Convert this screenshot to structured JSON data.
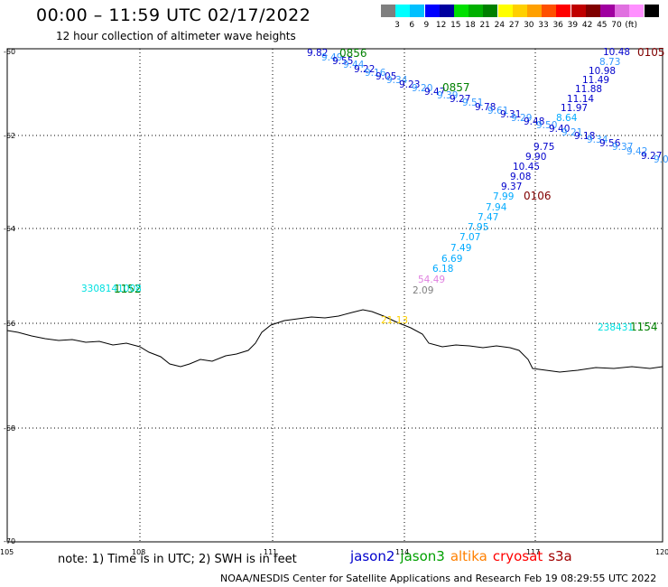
{
  "header": {
    "title": "00:00 – 11:59 UTC 02/17/2022",
    "subtitle": "12 hour collection of altimeter wave heights"
  },
  "color_scale": {
    "colors": [
      "#7f7f7f",
      "#00ffff",
      "#00c0ff",
      "#0000ff",
      "#0000a0",
      "#00e000",
      "#00b000",
      "#008000",
      "#ffff00",
      "#ffd000",
      "#ffa000",
      "#ff5000",
      "#ff0000",
      "#c00000",
      "#800000",
      "#a000a0",
      "#e070e0",
      "#ff90ff",
      "#000000"
    ],
    "labels": [
      "3",
      "6",
      "9",
      "12",
      "15",
      "18",
      "21",
      "24",
      "27",
      "30",
      "33",
      "36",
      "39",
      "42",
      "45",
      "70",
      "(ft)"
    ]
  },
  "axes": {
    "lat_labels": [
      "-60",
      "-62",
      "-64",
      "-66",
      "-68",
      "-70"
    ],
    "lon_labels": [
      "105",
      "108",
      "111",
      "114",
      "117",
      "120"
    ]
  },
  "tracks": {
    "right_ascending": [
      "10.48",
      "8.73",
      "10.98",
      "11.49",
      "11.88",
      "11.14",
      "11.97",
      "8.64",
      "9.75",
      "9.90",
      "10.45",
      "9.08",
      "9.37",
      "7.99",
      "7.94",
      "7.47",
      "7.95",
      "7.07",
      "7.49",
      "6.69",
      "6.18",
      "54.49",
      "2.09"
    ],
    "right_label_colors": [
      "#0000cc",
      "#3399ff",
      "#0000cc",
      "#0000cc",
      "#0000cc",
      "#0000cc",
      "#0000cc",
      "#00aaff",
      "#0000cc",
      "#0000cc",
      "#0000cc",
      "#0000cc",
      "#0000cc",
      "#00aaff",
      "#00aaff",
      "#00aaff",
      "#00aaff",
      "#00aaff",
      "#00aaff",
      "#00aaff",
      "#00aaff",
      "#e080e0",
      "#7f7f7f"
    ],
    "pass_labels": [
      "0105",
      "0106",
      "0856",
      "0857",
      "1152",
      "1154"
    ],
    "cluster_left_text": "3308141008",
    "cluster_bottomright_text": "238431",
    "coast_label": "21.13"
  },
  "note": "note: 1) Time is in UTC; 2) SWH is in feet",
  "legend": [
    {
      "name": "jason2",
      "color": "#0000cc"
    },
    {
      "name": "jason3",
      "color": "#00a000"
    },
    {
      "name": "altika",
      "color": "#ff8000"
    },
    {
      "name": "cryosat",
      "color": "#ff0000"
    },
    {
      "name": "s3a",
      "color": "#a00000"
    }
  ],
  "footer": "NOAA/NESDIS Center for Satellite Applications and Research     Feb 19 08:29:55 UTC 2022"
}
